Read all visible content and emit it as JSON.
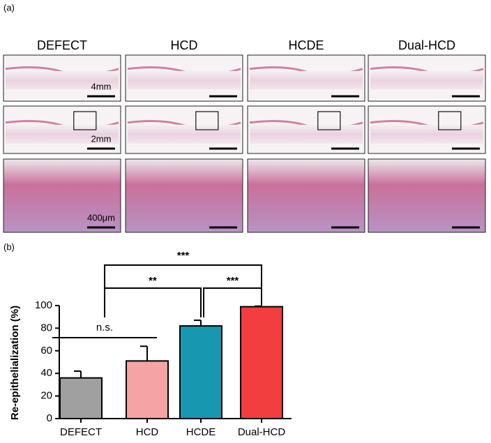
{
  "panel_a": {
    "label": "(a)",
    "columns": [
      "DEFECT",
      "HCD",
      "HCDE",
      "Dual-HCD"
    ],
    "scale_labels": [
      "4mm",
      "2mm",
      "400μm"
    ]
  },
  "chart_data": {
    "type": "bar",
    "panel_label": "(b)",
    "y_label": "Re-epithelialization (%)",
    "categories": [
      "DEFECT",
      "HCD",
      "HCDE",
      "Dual-HCD"
    ],
    "values": [
      36,
      51,
      82,
      99
    ],
    "errors": [
      6,
      13,
      5,
      0.5
    ],
    "colors": [
      "#a0a0a0",
      "#f6a3a3",
      "#1898b0",
      "#f23e3e"
    ],
    "ylim": [
      0,
      100
    ],
    "yticks": [
      0,
      20,
      40,
      60,
      80,
      100
    ],
    "annotations": [
      "***",
      "**",
      "***",
      "n.s."
    ]
  }
}
